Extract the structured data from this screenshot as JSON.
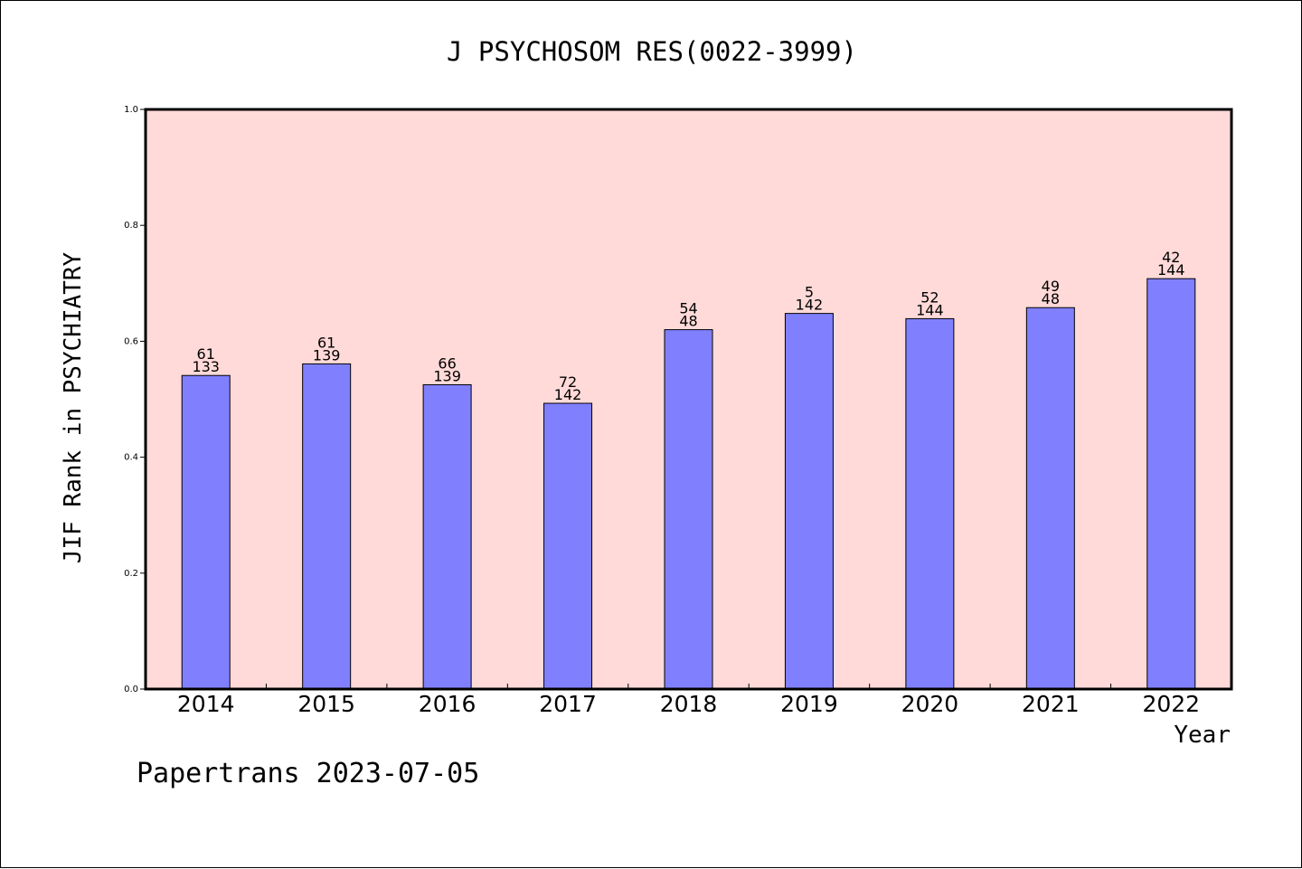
{
  "footer": "Papertrans 2023-07-05",
  "colors": {
    "plot_background": "#ffdad8",
    "bar_fill": "#8080ff",
    "bar_stroke": "#000000",
    "axis": "#000000"
  },
  "chart_data": {
    "type": "bar",
    "title": "J PSYCHOSOM RES(0022-3999)",
    "xlabel": "Year",
    "ylabel": "JIF Rank in PSYCHIATRY",
    "ylim": [
      0.0,
      1.0
    ],
    "yticks": [
      "0.0",
      "0.2",
      "0.4",
      "0.6",
      "0.8",
      "1.0"
    ],
    "grid": false,
    "categories": [
      "2014",
      "2015",
      "2016",
      "2017",
      "2018",
      "2019",
      "2020",
      "2021",
      "2022"
    ],
    "values": [
      0.541,
      0.561,
      0.525,
      0.493,
      0.62,
      0.648,
      0.639,
      0.658,
      0.708
    ],
    "label_top": [
      "61",
      "61",
      "66",
      "72",
      "54",
      "5",
      "52",
      "49",
      "42"
    ],
    "label_bottom": [
      "133",
      "139",
      "139",
      "142",
      "48",
      "142",
      "144",
      "48",
      "144"
    ]
  }
}
